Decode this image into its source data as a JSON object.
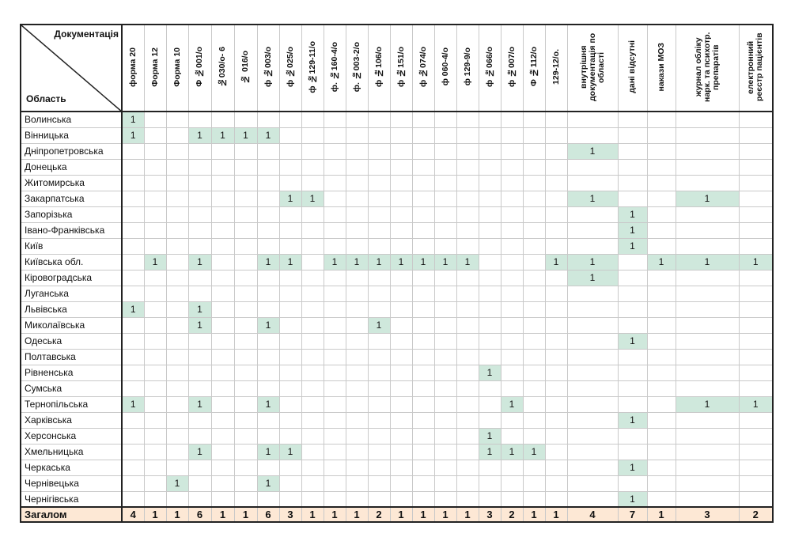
{
  "table": {
    "corner_top": "Документація",
    "corner_bottom": "Область",
    "columns": [
      "форма 20",
      "Форма 12",
      "Форма 10",
      "Ф №001/о",
      "№030/о- 6",
      "№ 016/о",
      "ф №003/о",
      "ф №025/о",
      "ф №129-11/о",
      "ф. №160-4/о",
      "ф. №003-2/о",
      "ф №106/о",
      "ф №151/о",
      "ф №074/о",
      "ф 060-4/о",
      "ф 129-9/о",
      "ф №066/о",
      "ф №007/о",
      "Ф №112/о",
      "129-12/о.",
      "внутрішня документація по області",
      "дані відсутні",
      "накази МОЗ",
      "журнал обліку нарк. та психотр. препаратів",
      "електронний реєстр пацієнтів"
    ],
    "rows": [
      {
        "region": "Волинська",
        "cells": [
          "1",
          "",
          "",
          "",
          "",
          "",
          "",
          "",
          "",
          "",
          "",
          "",
          "",
          "",
          "",
          "",
          "",
          "",
          "",
          "",
          "",
          "",
          "",
          "",
          ""
        ]
      },
      {
        "region": "Вінницька",
        "cells": [
          "1",
          "",
          "",
          "1",
          "1",
          "1",
          "1",
          "",
          "",
          "",
          "",
          "",
          "",
          "",
          "",
          "",
          "",
          "",
          "",
          "",
          "",
          "",
          "",
          "",
          ""
        ]
      },
      {
        "region": "Дніпропетровська",
        "cells": [
          "",
          "",
          "",
          "",
          "",
          "",
          "",
          "",
          "",
          "",
          "",
          "",
          "",
          "",
          "",
          "",
          "",
          "",
          "",
          "",
          "1",
          "",
          "",
          "",
          ""
        ]
      },
      {
        "region": "Донецька",
        "cells": [
          "",
          "",
          "",
          "",
          "",
          "",
          "",
          "",
          "",
          "",
          "",
          "",
          "",
          "",
          "",
          "",
          "",
          "",
          "",
          "",
          "",
          "",
          "",
          "",
          ""
        ]
      },
      {
        "region": "Житомирська",
        "cells": [
          "",
          "",
          "",
          "",
          "",
          "",
          "",
          "",
          "",
          "",
          "",
          "",
          "",
          "",
          "",
          "",
          "",
          "",
          "",
          "",
          "",
          "",
          "",
          "",
          ""
        ]
      },
      {
        "region": "Закарпатська",
        "cells": [
          "",
          "",
          "",
          "",
          "",
          "",
          "",
          "1",
          "1",
          "",
          "",
          "",
          "",
          "",
          "",
          "",
          "",
          "",
          "",
          "",
          "1",
          "",
          "",
          "1",
          ""
        ]
      },
      {
        "region": "Запорізька",
        "cells": [
          "",
          "",
          "",
          "",
          "",
          "",
          "",
          "",
          "",
          "",
          "",
          "",
          "",
          "",
          "",
          "",
          "",
          "",
          "",
          "",
          "",
          "1",
          "",
          "",
          ""
        ]
      },
      {
        "region": "Івано-Франківська",
        "cells": [
          "",
          "",
          "",
          "",
          "",
          "",
          "",
          "",
          "",
          "",
          "",
          "",
          "",
          "",
          "",
          "",
          "",
          "",
          "",
          "",
          "",
          "1",
          "",
          "",
          ""
        ]
      },
      {
        "region": "Київ",
        "cells": [
          "",
          "",
          "",
          "",
          "",
          "",
          "",
          "",
          "",
          "",
          "",
          "",
          "",
          "",
          "",
          "",
          "",
          "",
          "",
          "",
          "",
          "1",
          "",
          "",
          ""
        ]
      },
      {
        "region": "Київська обл.",
        "cells": [
          "",
          "1",
          "",
          "1",
          "",
          "",
          "1",
          "1",
          "",
          "1",
          "1",
          "1",
          "1",
          "1",
          "1",
          "1",
          "",
          "",
          "",
          "1",
          "1",
          "",
          "1",
          "1",
          "1"
        ]
      },
      {
        "region": "Кіровоградська",
        "cells": [
          "",
          "",
          "",
          "",
          "",
          "",
          "",
          "",
          "",
          "",
          "",
          "",
          "",
          "",
          "",
          "",
          "",
          "",
          "",
          "",
          "1",
          "",
          "",
          "",
          ""
        ]
      },
      {
        "region": "Луганська",
        "cells": [
          "",
          "",
          "",
          "",
          "",
          "",
          "",
          "",
          "",
          "",
          "",
          "",
          "",
          "",
          "",
          "",
          "",
          "",
          "",
          "",
          "",
          "",
          "",
          "",
          ""
        ]
      },
      {
        "region": "Львівська",
        "cells": [
          "1",
          "",
          "",
          "1",
          "",
          "",
          "",
          "",
          "",
          "",
          "",
          "",
          "",
          "",
          "",
          "",
          "",
          "",
          "",
          "",
          "",
          "",
          "",
          "",
          ""
        ]
      },
      {
        "region": "Миколаївська",
        "cells": [
          "",
          "",
          "",
          "1",
          "",
          "",
          "1",
          "",
          "",
          "",
          "",
          "1",
          "",
          "",
          "",
          "",
          "",
          "",
          "",
          "",
          "",
          "",
          "",
          "",
          ""
        ]
      },
      {
        "region": "Одеська",
        "cells": [
          "",
          "",
          "",
          "",
          "",
          "",
          "",
          "",
          "",
          "",
          "",
          "",
          "",
          "",
          "",
          "",
          "",
          "",
          "",
          "",
          "",
          "1",
          "",
          "",
          ""
        ]
      },
      {
        "region": "Полтавська",
        "cells": [
          "",
          "",
          "",
          "",
          "",
          "",
          "",
          "",
          "",
          "",
          "",
          "",
          "",
          "",
          "",
          "",
          "",
          "",
          "",
          "",
          "",
          "",
          "",
          "",
          ""
        ]
      },
      {
        "region": "Рівненська",
        "cells": [
          "",
          "",
          "",
          "",
          "",
          "",
          "",
          "",
          "",
          "",
          "",
          "",
          "",
          "",
          "",
          "",
          "1",
          "",
          "",
          "",
          "",
          "",
          "",
          "",
          ""
        ]
      },
      {
        "region": "Сумська",
        "cells": [
          "",
          "",
          "",
          "",
          "",
          "",
          "",
          "",
          "",
          "",
          "",
          "",
          "",
          "",
          "",
          "",
          "",
          "",
          "",
          "",
          "",
          "",
          "",
          "",
          ""
        ]
      },
      {
        "region": "Тернопільська",
        "cells": [
          "1",
          "",
          "",
          "1",
          "",
          "",
          "1",
          "",
          "",
          "",
          "",
          "",
          "",
          "",
          "",
          "",
          "",
          "1",
          "",
          "",
          "",
          "",
          "",
          "1",
          "1"
        ]
      },
      {
        "region": "Харківська",
        "cells": [
          "",
          "",
          "",
          "",
          "",
          "",
          "",
          "",
          "",
          "",
          "",
          "",
          "",
          "",
          "",
          "",
          "",
          "",
          "",
          "",
          "",
          "1",
          "",
          "",
          ""
        ]
      },
      {
        "region": "Херсонська",
        "cells": [
          "",
          "",
          "",
          "",
          "",
          "",
          "",
          "",
          "",
          "",
          "",
          "",
          "",
          "",
          "",
          "",
          "1",
          "",
          "",
          "",
          "",
          "",
          "",
          "",
          ""
        ]
      },
      {
        "region": "Хмельницька",
        "cells": [
          "",
          "",
          "",
          "1",
          "",
          "",
          "1",
          "1",
          "",
          "",
          "",
          "",
          "",
          "",
          "",
          "",
          "1",
          "1",
          "1",
          "",
          "",
          "",
          "",
          "",
          ""
        ]
      },
      {
        "region": "Черкаська",
        "cells": [
          "",
          "",
          "",
          "",
          "",
          "",
          "",
          "",
          "",
          "",
          "",
          "",
          "",
          "",
          "",
          "",
          "",
          "",
          "",
          "",
          "",
          "1",
          "",
          "",
          ""
        ]
      },
      {
        "region": "Чернівецька",
        "cells": [
          "",
          "",
          "1",
          "",
          "",
          "",
          "1",
          "",
          "",
          "",
          "",
          "",
          "",
          "",
          "",
          "",
          "",
          "",
          "",
          "",
          "",
          "",
          "",
          "",
          ""
        ]
      },
      {
        "region": "Чернігівська",
        "cells": [
          "",
          "",
          "",
          "",
          "",
          "",
          "",
          "",
          "",
          "",
          "",
          "",
          "",
          "",
          "",
          "",
          "",
          "",
          "",
          "",
          "",
          "1",
          "",
          "",
          ""
        ]
      }
    ],
    "totals_label": "Загалом",
    "totals": [
      "4",
      "1",
      "1",
      "6",
      "1",
      "1",
      "6",
      "3",
      "1",
      "1",
      "1",
      "2",
      "1",
      "1",
      "1",
      "1",
      "3",
      "2",
      "1",
      "1",
      "4",
      "7",
      "1",
      "3",
      "2"
    ]
  },
  "colors": {
    "highlight": "#cfe8dc",
    "totals_row": "#fde8d5"
  }
}
